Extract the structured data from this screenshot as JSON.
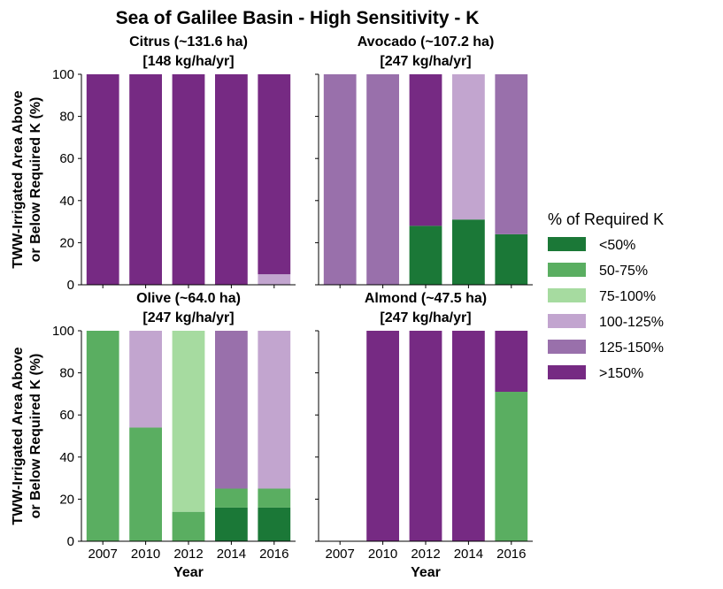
{
  "chart_data": {
    "type": "bar",
    "subtype": "stacked",
    "title": "Sea of Galilee Basin - High Sensitivity - K",
    "ylabel_lines": [
      "TWW-Irrigated Area Above",
      "or Below Required K (%)"
    ],
    "xlabel": "Year",
    "categories": [
      "2007",
      "2010",
      "2012",
      "2014",
      "2016"
    ],
    "ylim": [
      0,
      100
    ],
    "yticks": [
      "0",
      "20",
      "40",
      "60",
      "80",
      "100"
    ],
    "legend": {
      "title": "% of Required K",
      "placement": "right",
      "items": [
        {
          "label": "<50%",
          "color": "#1b7837"
        },
        {
          "label": "50-75%",
          "color": "#5aae61"
        },
        {
          "label": "75-100%",
          "color": "#a6dba0"
        },
        {
          "label": "100-125%",
          "color": "#c2a5cf"
        },
        {
          "label": "125-150%",
          "color": "#9970ab"
        },
        {
          "label": ">150%",
          "color": "#762a83"
        }
      ]
    },
    "panels": [
      {
        "title_line1": "Citrus (~131.6 ha)",
        "title_line2": "[148 kg/ha/yr]",
        "series": [
          {
            "values": [
              0,
              0,
              0,
              0,
              0
            ]
          },
          {
            "values": [
              0,
              0,
              0,
              0,
              0
            ]
          },
          {
            "values": [
              0,
              0,
              0,
              0,
              0
            ]
          },
          {
            "values": [
              0,
              0,
              0,
              0,
              5
            ]
          },
          {
            "values": [
              0,
              0,
              0,
              0,
              0
            ]
          },
          {
            "values": [
              100,
              100,
              100,
              100,
              95
            ]
          }
        ]
      },
      {
        "title_line1": "Avocado (~107.2 ha)",
        "title_line2": "[247 kg/ha/yr]",
        "series": [
          {
            "values": [
              0,
              0,
              28,
              31,
              24
            ]
          },
          {
            "values": [
              0,
              0,
              0,
              0,
              0
            ]
          },
          {
            "values": [
              0,
              0,
              0,
              0,
              0
            ]
          },
          {
            "values": [
              0,
              0,
              0,
              69,
              0
            ]
          },
          {
            "values": [
              100,
              100,
              0,
              0,
              76
            ]
          },
          {
            "values": [
              0,
              0,
              72,
              0,
              0
            ]
          }
        ]
      },
      {
        "title_line1": "Olive (~64.0 ha)",
        "title_line2": "[247 kg/ha/yr]",
        "series": [
          {
            "values": [
              0,
              0,
              0,
              16,
              16
            ]
          },
          {
            "values": [
              100,
              54,
              14,
              9,
              9
            ]
          },
          {
            "values": [
              0,
              0,
              86,
              0,
              0
            ]
          },
          {
            "values": [
              0,
              46,
              0,
              0,
              75
            ]
          },
          {
            "values": [
              0,
              0,
              0,
              75,
              0
            ]
          },
          {
            "values": [
              0,
              0,
              0,
              0,
              0
            ]
          }
        ]
      },
      {
        "title_line1": "Almond (~47.5 ha)",
        "title_line2": "[247 kg/ha/yr]",
        "series": [
          {
            "values": [
              0,
              0,
              0,
              0,
              0
            ]
          },
          {
            "values": [
              0,
              0,
              0,
              0,
              71
            ]
          },
          {
            "values": [
              0,
              0,
              0,
              0,
              0
            ]
          },
          {
            "values": [
              0,
              0,
              0,
              0,
              0
            ]
          },
          {
            "values": [
              0,
              0,
              0,
              0,
              0
            ]
          },
          {
            "values": [
              0,
              100,
              100,
              100,
              29
            ]
          }
        ]
      }
    ]
  }
}
